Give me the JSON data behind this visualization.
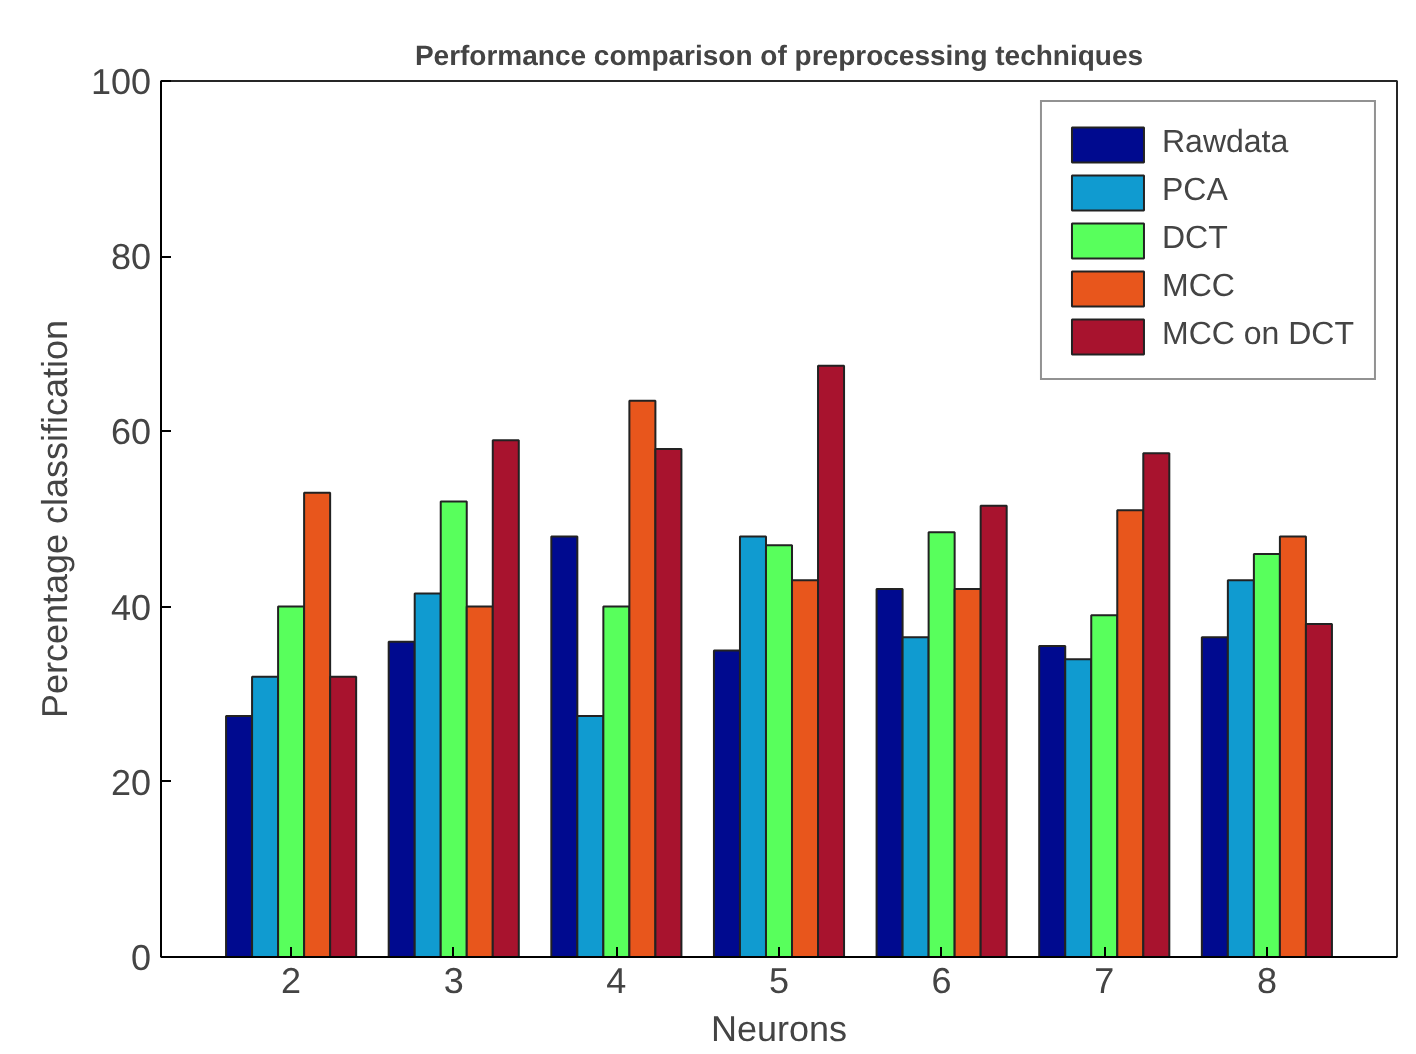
{
  "chart_data": {
    "type": "bar",
    "title": "Performance comparison of preprocessing techniques",
    "xlabel": "Neurons",
    "ylabel": "Percentage classification",
    "categories": [
      "2",
      "3",
      "4",
      "5",
      "6",
      "7",
      "8"
    ],
    "series": [
      {
        "name": "Rawdata",
        "color": "#000a8f",
        "values": [
          27.5,
          36,
          48,
          35,
          42,
          35.5,
          36.5
        ]
      },
      {
        "name": "PCA",
        "color": "#109bd0",
        "values": [
          32,
          41.5,
          27.5,
          48,
          36.5,
          34,
          43
        ]
      },
      {
        "name": "DCT",
        "color": "#58ff5c",
        "values": [
          40,
          52,
          40,
          47,
          48.5,
          39,
          46
        ]
      },
      {
        "name": "MCC",
        "color": "#e8561c",
        "values": [
          53,
          40,
          63.5,
          43,
          42,
          51,
          48
        ]
      },
      {
        "name": "MCC on DCT",
        "color": "#a8132e",
        "values": [
          32,
          59,
          58,
          67.5,
          51.5,
          57.5,
          38
        ]
      }
    ],
    "ylim": [
      0,
      100
    ],
    "yticks": [
      0,
      20,
      40,
      60,
      80,
      100
    ],
    "legend": "top right"
  }
}
